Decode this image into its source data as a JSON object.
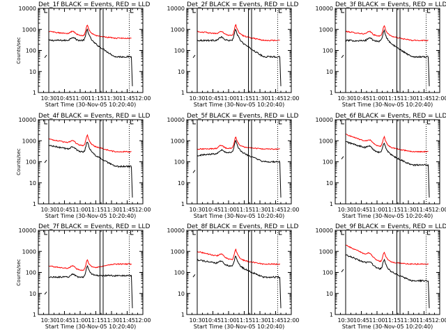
{
  "chart_data": [
    {
      "type": "line",
      "title": "Det_1f BLACK = Events, RED = LLD",
      "xlabel": "Start Time (30-Nov-05 10:20:40)",
      "ylabel": "Counts/sec",
      "yscale": "log",
      "ylim": [
        1,
        10000
      ],
      "xlim": [
        "10:20",
        "12:00"
      ],
      "x_ticks": [
        "10:30",
        "10:45",
        "11:00",
        "11:15",
        "11:30",
        "11:45",
        "12:00"
      ],
      "y_ticks": [
        "1",
        "10",
        "100",
        "1000",
        "10000"
      ],
      "vlines": [
        "10:30",
        "11:19",
        "11:22",
        "11:47"
      ],
      "series": [
        {
          "color": "#ff0000",
          "start": 800,
          "peak": 1600,
          "end": 380
        },
        {
          "color": "#000000",
          "start": 300,
          "peak": 1000,
          "end": 50
        }
      ]
    },
    {
      "type": "line",
      "title": "Det_2f BLACK = Events, RED = LLD",
      "xlabel": "Start Time (30-Nov-05 10:20:40)",
      "ylabel": "",
      "yscale": "log",
      "ylim": [
        1,
        10000
      ],
      "xlim": [
        "10:20",
        "12:00"
      ],
      "x_ticks": [
        "10:30",
        "10:45",
        "11:00",
        "11:15",
        "11:30",
        "11:45",
        "12:00"
      ],
      "y_ticks": [
        "1",
        "10",
        "100",
        "1000",
        "10000"
      ],
      "vlines": [
        "10:30",
        "11:19",
        "11:22",
        "11:47"
      ],
      "series": [
        {
          "color": "#ff0000",
          "start": 800,
          "peak": 1600,
          "end": 300
        },
        {
          "color": "#000000",
          "start": 300,
          "peak": 1000,
          "end": 50
        }
      ]
    },
    {
      "type": "line",
      "title": "Det_3f BLACK = Events, RED = LLD",
      "xlabel": "Start Time (30-Nov-05 10:20:40)",
      "ylabel": "",
      "yscale": "log",
      "ylim": [
        1,
        10000
      ],
      "xlim": [
        "10:20",
        "12:00"
      ],
      "x_ticks": [
        "10:30",
        "10:45",
        "11:00",
        "11:15",
        "11:30",
        "11:45",
        "12:00"
      ],
      "y_ticks": [
        "1",
        "10",
        "100",
        "1000",
        "10000"
      ],
      "vlines": [
        "10:30",
        "11:19",
        "11:22",
        "11:47"
      ],
      "series": [
        {
          "color": "#ff0000",
          "start": 800,
          "peak": 1500,
          "end": 300
        },
        {
          "color": "#000000",
          "start": 300,
          "peak": 900,
          "end": 50
        }
      ]
    },
    {
      "type": "line",
      "title": "Det_4f BLACK = Events, RED = LLD",
      "xlabel": "Start Time (30-Nov-05 10:20:40)",
      "ylabel": "Counts/sec",
      "yscale": "log",
      "ylim": [
        1,
        10000
      ],
      "xlim": [
        "10:20",
        "12:00"
      ],
      "x_ticks": [
        "10:30",
        "10:45",
        "11:00",
        "11:15",
        "11:30",
        "11:45",
        "12:00"
      ],
      "y_ticks": [
        "1",
        "10",
        "100",
        "1000",
        "10000"
      ],
      "vlines": [
        "10:30",
        "11:19",
        "11:22",
        "11:47"
      ],
      "series": [
        {
          "color": "#ff0000",
          "start": 1200,
          "peak": 1800,
          "end": 300
        },
        {
          "color": "#000000",
          "start": 600,
          "peak": 900,
          "end": 60
        }
      ]
    },
    {
      "type": "line",
      "title": "Det_5f BLACK = Events, RED = LLD",
      "xlabel": "Start Time (30-Nov-05 10:20:40)",
      "ylabel": "",
      "yscale": "log",
      "ylim": [
        1,
        10000
      ],
      "xlim": [
        "10:20",
        "12:00"
      ],
      "x_ticks": [
        "10:30",
        "10:45",
        "11:00",
        "11:15",
        "11:30",
        "11:45",
        "12:00"
      ],
      "y_ticks": [
        "1",
        "10",
        "100",
        "1000",
        "10000"
      ],
      "vlines": [
        "10:30",
        "11:19",
        "11:22",
        "11:47"
      ],
      "series": [
        {
          "color": "#ff0000",
          "start": 400,
          "peak": 1500,
          "end": 400
        },
        {
          "color": "#000000",
          "start": 200,
          "peak": 1000,
          "end": 100
        }
      ]
    },
    {
      "type": "line",
      "title": "Det_6f BLACK = Events, RED = LLD",
      "xlabel": "Start Time (30-Nov-05 10:20:40)",
      "ylabel": "",
      "yscale": "log",
      "ylim": [
        1,
        10000
      ],
      "xlim": [
        "10:20",
        "12:00"
      ],
      "x_ticks": [
        "10:30",
        "10:45",
        "11:00",
        "11:15",
        "11:30",
        "11:45",
        "12:00"
      ],
      "y_ticks": [
        "1",
        "10",
        "100",
        "1000",
        "10000"
      ],
      "vlines": [
        "10:30",
        "11:19",
        "11:22",
        "11:47"
      ],
      "series": [
        {
          "color": "#ff0000",
          "start": 2000,
          "peak": 1500,
          "end": 300
        },
        {
          "color": "#000000",
          "start": 900,
          "peak": 800,
          "end": 70
        }
      ]
    },
    {
      "type": "line",
      "title": "Det_7f BLACK = Events, RED = LLD",
      "xlabel": "Start Time (30-Nov-05 10:20:40)",
      "ylabel": "Counts/sec",
      "yscale": "log",
      "ylim": [
        1,
        10000
      ],
      "xlim": [
        "10:20",
        "12:00"
      ],
      "x_ticks": [
        "10:30",
        "10:45",
        "11:00",
        "11:15",
        "11:30",
        "11:45",
        "12:00"
      ],
      "y_ticks": [
        "1",
        "10",
        "100",
        "1000",
        "10000"
      ],
      "vlines": [
        "10:30",
        "11:19",
        "11:22",
        "11:47"
      ],
      "series": [
        {
          "color": "#ff0000",
          "start": 200,
          "peak": 400,
          "end": 250
        },
        {
          "color": "#000000",
          "start": 60,
          "peak": 200,
          "end": 70
        }
      ]
    },
    {
      "type": "line",
      "title": "Det_8f BLACK = Events, RED = LLD",
      "xlabel": "Start Time (30-Nov-05 10:20:40)",
      "ylabel": "",
      "yscale": "log",
      "ylim": [
        1,
        10000
      ],
      "xlim": [
        "10:20",
        "12:00"
      ],
      "x_ticks": [
        "10:30",
        "10:45",
        "11:00",
        "11:15",
        "11:30",
        "11:45",
        "12:00"
      ],
      "y_ticks": [
        "1",
        "10",
        "100",
        "1000",
        "10000"
      ],
      "vlines": [
        "10:30",
        "11:19",
        "11:22",
        "11:47"
      ],
      "series": [
        {
          "color": "#ff0000",
          "start": 1000,
          "peak": 1200,
          "end": 250
        },
        {
          "color": "#000000",
          "start": 400,
          "peak": 600,
          "end": 60
        }
      ]
    },
    {
      "type": "line",
      "title": "Det_9f BLACK = Events, RED = LLD",
      "xlabel": "Start Time (30-Nov-05 10:20:40)",
      "ylabel": "",
      "yscale": "log",
      "ylim": [
        1,
        10000
      ],
      "xlim": [
        "10:20",
        "12:00"
      ],
      "x_ticks": [
        "10:30",
        "10:45",
        "11:00",
        "11:15",
        "11:30",
        "11:45",
        "12:00"
      ],
      "y_ticks": [
        "1",
        "10",
        "100",
        "1000",
        "10000"
      ],
      "vlines": [
        "10:30",
        "11:19",
        "11:22",
        "11:47"
      ],
      "series": [
        {
          "color": "#ff0000",
          "start": 2000,
          "peak": 900,
          "end": 250
        },
        {
          "color": "#000000",
          "start": 700,
          "peak": 400,
          "end": 40
        }
      ]
    }
  ]
}
